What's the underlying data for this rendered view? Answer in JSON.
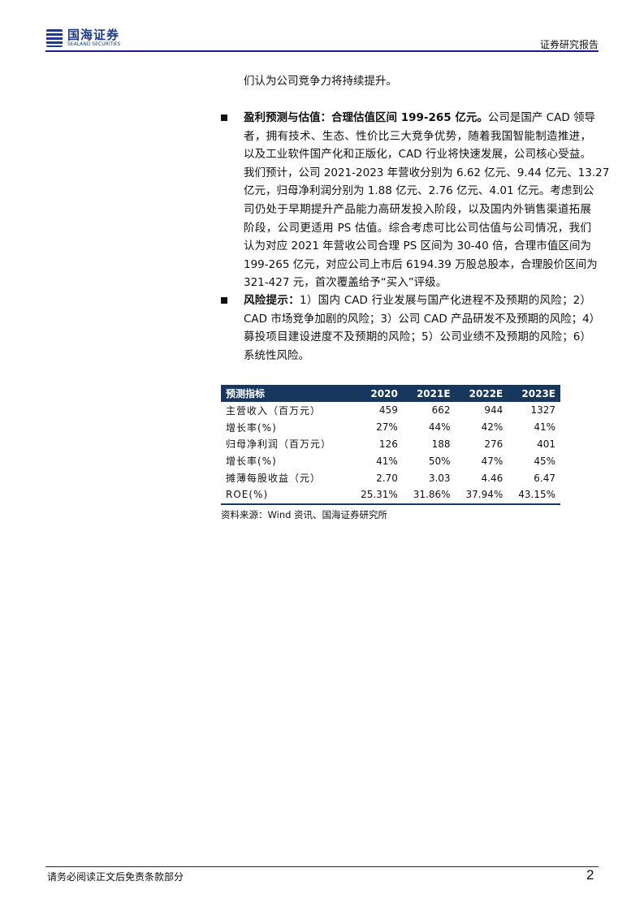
{
  "header": {
    "logo_cn": "国海证券",
    "logo_en": "SEALAND SECURITIES",
    "report_type": "证券研究报告"
  },
  "intro_line": "们认为公司竞争力将持续提升。",
  "bullets": [
    {
      "lead": "盈利预测与估值：合理估值区间 199-265 亿元。",
      "lines": [
        "公司是国产 CAD 领导",
        "者，拥有技术、生态、性价比三大竞争优势，随着我国智能制造推进，",
        "以及工业软件国产化和正版化，CAD 行业将快速发展，公司核心受益。",
        "我们预计，公司 2021-2023 年营收分别为 6.62 亿元、9.44 亿元、13.27",
        "亿元，归母净利润分别为 1.88 亿元、2.76 亿元、4.01 亿元。考虑到公",
        "司仍处于早期提升产品能力高研发投入阶段，以及国内外销售渠道拓展",
        "阶段，公司更适用 PS 估值。综合考虑可比公司估值与公司情况，我们",
        "认为对应 2021 年营收公司合理 PS 区间为 30-40 倍，合理市值区间为",
        "199-265 亿元，对应公司上市后 6194.39 万股总股本，合理股价区间为",
        "321-427 元，首次覆盖给予“买入”评级。"
      ]
    },
    {
      "lead": "风险提示：",
      "lines": [
        "1）国内 CAD 行业发展与国产化进程不及预期的风险；2）",
        "CAD 市场竞争加剧的风险；3）公司 CAD 产品研发不及预期的风险；4）",
        "募投项目建设进度不及预期的风险；5）公司业绩不及预期的风险；6）",
        "系统性风险。"
      ]
    }
  ],
  "table": {
    "headers": [
      "预测指标",
      "2020",
      "2021E",
      "2022E",
      "2023E"
    ],
    "rows": [
      [
        "主营收入（百万元）",
        "459",
        "662",
        "944",
        "1327"
      ],
      [
        "增长率(%)",
        "27%",
        "44%",
        "42%",
        "41%"
      ],
      [
        "归母净利润（百万元）",
        "126",
        "188",
        "276",
        "401"
      ],
      [
        "增长率(%)",
        "41%",
        "50%",
        "47%",
        "45%"
      ],
      [
        "摊薄每股收益（元）",
        "2.70",
        "3.03",
        "4.46",
        "6.47"
      ],
      [
        "ROE(%)",
        "25.31%",
        "31.86%",
        "37.94%",
        "43.15%"
      ]
    ],
    "source": "资料来源：Wind 资讯、国海证券研究所"
  },
  "footer": {
    "disclaimer": "请务必阅读正文后免责条款部分",
    "page": "2"
  }
}
